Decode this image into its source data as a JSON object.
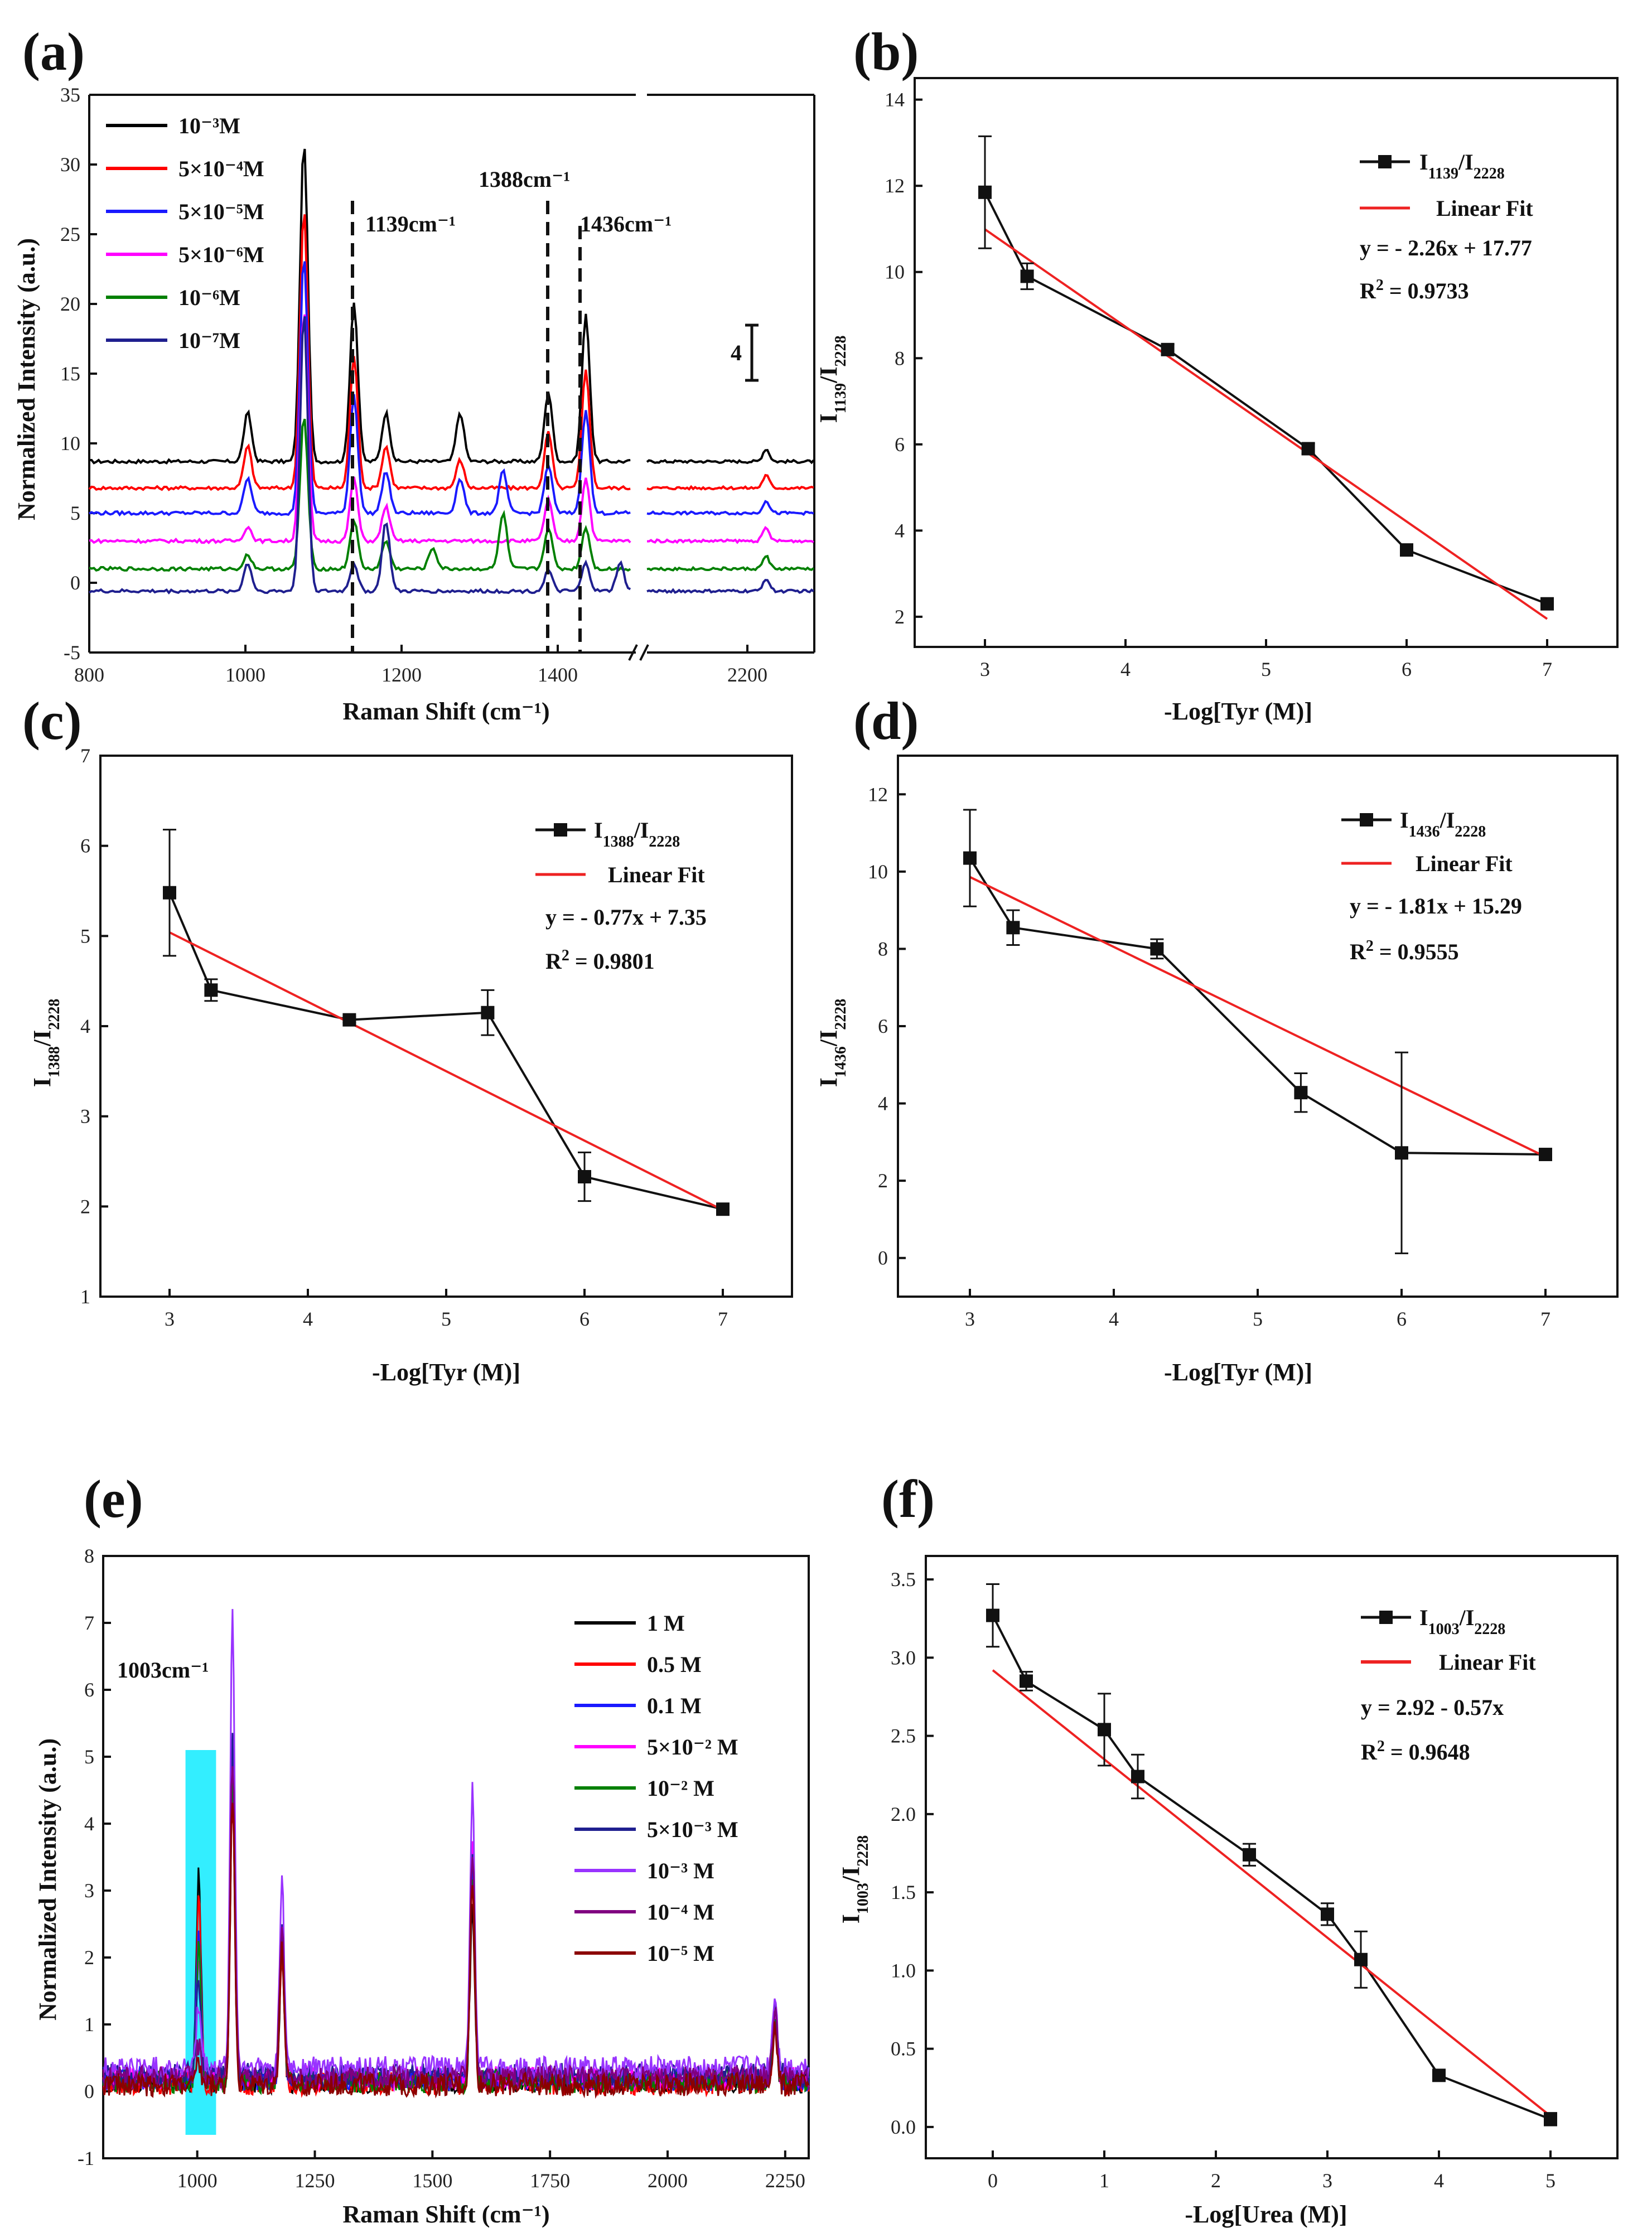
{
  "chart_data": [
    {
      "panel": "(a)",
      "type": "line",
      "xlabel": "Raman Shift (cm⁻¹)",
      "ylabel": "Normalized Intensity (a.u.)",
      "xlim_left": [
        800,
        1500
      ],
      "xlim_right": [
        2050,
        2300
      ],
      "xticks": [
        "800",
        "1000",
        "1200",
        "1400",
        "2200"
      ],
      "ylim": [
        -5,
        35
      ],
      "yticks": [
        "-5",
        "0",
        "5",
        "10",
        "15",
        "20",
        "25",
        "30",
        "35"
      ],
      "scale_bar": "4",
      "annotations": [
        "1139cm⁻¹",
        "1388cm⁻¹",
        "1436cm⁻¹"
      ],
      "series": [
        {
          "name": "10⁻³M",
          "color": "#000000",
          "baseline": 8.7,
          "peaks": [
            [
              1003,
              3.5
            ],
            [
              1075,
              23
            ],
            [
              1139,
              11.5
            ],
            [
              1180,
              3.5
            ],
            [
              1275,
              3.5
            ],
            [
              1388,
              5
            ],
            [
              1436,
              10.5
            ]
          ]
        },
        {
          "name": "5×10⁻⁴M",
          "color": "#ff0000",
          "baseline": 6.8,
          "peaks": [
            [
              1003,
              3.0
            ],
            [
              1075,
              20
            ],
            [
              1139,
              9.5
            ],
            [
              1180,
              3.0
            ],
            [
              1275,
              2.0
            ],
            [
              1388,
              4
            ],
            [
              1436,
              8.5
            ]
          ]
        },
        {
          "name": "5×10⁻⁵M",
          "color": "#1a1aff",
          "baseline": 5.0,
          "peaks": [
            [
              1003,
              2.5
            ],
            [
              1075,
              18.5
            ],
            [
              1139,
              8.5
            ],
            [
              1180,
              3.0
            ],
            [
              1275,
              2.5
            ],
            [
              1330,
              3.0
            ],
            [
              1388,
              3.5
            ],
            [
              1436,
              7.5
            ]
          ]
        },
        {
          "name": "5×10⁻⁶M",
          "color": "#ff00ff",
          "baseline": 3.0,
          "peaks": [
            [
              1003,
              1.0
            ],
            [
              1075,
              16.5
            ],
            [
              1139,
              4.5
            ],
            [
              1180,
              2.5
            ],
            [
              1388,
              3.0
            ],
            [
              1436,
              4.5
            ]
          ]
        },
        {
          "name": "10⁻⁶M",
          "color": "#008000",
          "baseline": 1.0,
          "peaks": [
            [
              1003,
              1.0
            ],
            [
              1075,
              11
            ],
            [
              1139,
              3.5
            ],
            [
              1180,
              2.0
            ],
            [
              1240,
              1.5
            ],
            [
              1330,
              4.0
            ],
            [
              1388,
              3.0
            ],
            [
              1436,
              3.0
            ]
          ]
        },
        {
          "name": "10⁻⁷M",
          "color": "#1f1f8f",
          "baseline": -0.6,
          "peaks": [
            [
              1003,
              2.0
            ],
            [
              1075,
              20
            ],
            [
              1139,
              2.0
            ],
            [
              1180,
              5.0
            ],
            [
              1388,
              1.5
            ],
            [
              1436,
              2.0
            ],
            [
              1480,
              2.0
            ]
          ]
        }
      ]
    },
    {
      "panel": "(b)",
      "type": "scatter",
      "xlabel": "-Log[Tyr (M)]",
      "ylabel_main": "I",
      "ylabel_sub1": "1139",
      "ylabel_sub2": "2228",
      "xlim": [
        2.5,
        7.5
      ],
      "xticks": [
        "3",
        "4",
        "5",
        "6",
        "7"
      ],
      "ylim": [
        1.3,
        14.5
      ],
      "yticks": [
        "2",
        "4",
        "6",
        "8",
        "10",
        "12",
        "14"
      ],
      "x": [
        3,
        3.3,
        4.3,
        5.3,
        6,
        7
      ],
      "y": [
        11.85,
        9.9,
        8.2,
        5.9,
        3.55,
        2.3
      ],
      "err": [
        1.3,
        0.3,
        0.12,
        0.12,
        0.1,
        0.12
      ],
      "fit": {
        "x": [
          3,
          7
        ],
        "y": [
          10.99,
          1.95
        ]
      },
      "legend": {
        "series_main": "I",
        "series_sub1": "1139",
        "series_sub2": "2228",
        "fit": "Linear Fit",
        "equation": "y = - 2.26x + 17.77",
        "r2_label": "R",
        "r2_value": " = 0.9733"
      }
    },
    {
      "panel": "(c)",
      "type": "scatter",
      "xlabel": "-Log[Tyr (M)]",
      "ylabel_main": "I",
      "ylabel_sub1": "1388",
      "ylabel_sub2": "2228",
      "xlim": [
        2.5,
        7.5
      ],
      "xticks": [
        "3",
        "4",
        "5",
        "6",
        "7"
      ],
      "ylim": [
        1,
        7
      ],
      "yticks": [
        "1",
        "2",
        "3",
        "4",
        "5",
        "6",
        "7"
      ],
      "x": [
        3,
        3.3,
        4.3,
        5.3,
        6,
        7
      ],
      "y": [
        5.48,
        4.4,
        4.07,
        4.15,
        2.33,
        1.97
      ],
      "err": [
        0.7,
        0.12,
        0.03,
        0.25,
        0.27,
        0.04
      ],
      "fit": {
        "x": [
          3,
          7
        ],
        "y": [
          5.04,
          1.96
        ]
      },
      "legend": {
        "series_main": "I",
        "series_sub1": "1388",
        "series_sub2": "2228",
        "fit": "Linear Fit",
        "equation": "y = - 0.77x + 7.35",
        "r2_label": "R",
        "r2_value": " = 0.9801"
      }
    },
    {
      "panel": "(d)",
      "type": "scatter",
      "xlabel": "-Log[Tyr (M)]",
      "ylabel_main": "I",
      "ylabel_sub1": "1436",
      "ylabel_sub2": "2228",
      "xlim": [
        2.5,
        7.5
      ],
      "xticks": [
        "3",
        "4",
        "5",
        "6",
        "7"
      ],
      "ylim": [
        -1,
        13
      ],
      "yticks": [
        "0",
        "2",
        "4",
        "6",
        "8",
        "10",
        "12"
      ],
      "x": [
        3,
        3.3,
        4.3,
        5.3,
        6,
        7
      ],
      "y": [
        10.35,
        8.55,
        8.0,
        4.28,
        2.72,
        2.68
      ],
      "err": [
        1.25,
        0.45,
        0.25,
        0.5,
        2.6,
        0.12
      ],
      "fit": {
        "x": [
          3,
          7
        ],
        "y": [
          9.86,
          2.62
        ]
      },
      "legend": {
        "series_main": "I",
        "series_sub1": "1436",
        "series_sub2": "2228",
        "fit": "Linear Fit",
        "equation": "y = - 1.81x + 15.29",
        "r2_label": "R",
        "r2_value": " = 0.9555"
      }
    },
    {
      "panel": "(e)",
      "type": "line",
      "xlabel": "Raman Shift (cm⁻¹)",
      "ylabel": "Normalized Intensity (a.u.)",
      "xlim": [
        800,
        2300
      ],
      "xticks": [
        "1000",
        "1250",
        "1500",
        "1750",
        "2000",
        "2250"
      ],
      "ylim": [
        -1,
        8
      ],
      "yticks": [
        "-1",
        "0",
        "1",
        "2",
        "3",
        "4",
        "5",
        "6",
        "7",
        "8"
      ],
      "highlight": {
        "x": [
          975,
          1040
        ],
        "y": [
          -0.65,
          5.1
        ],
        "color": "#33eeff"
      },
      "annotation": "1003cm⁻¹",
      "series": [
        {
          "name": "1 M",
          "color": "#000000",
          "baseline": 0.15,
          "peaks": [
            [
              1003,
              3.1
            ],
            [
              1075,
              4.2
            ],
            [
              1180,
              1.8
            ],
            [
              1585,
              2.6
            ],
            [
              2228,
              1.0
            ]
          ]
        },
        {
          "name": "0.5 M",
          "color": "#ff0000",
          "baseline": 0.12,
          "peaks": [
            [
              1003,
              2.8
            ],
            [
              1075,
              4.4
            ],
            [
              1180,
              2.0
            ],
            [
              1585,
              3.0
            ],
            [
              2228,
              1.0
            ]
          ]
        },
        {
          "name": "0.1 M",
          "color": "#1a1aff",
          "baseline": 0.18,
          "peaks": [
            [
              1003,
              2.3
            ],
            [
              1075,
              4.6
            ],
            [
              1180,
              2.1
            ],
            [
              1585,
              3.4
            ],
            [
              2228,
              1.0
            ]
          ]
        },
        {
          "name": "5×10⁻² M",
          "color": "#ff00ff",
          "baseline": 0.2,
          "peaks": [
            [
              1003,
              1.9
            ],
            [
              1075,
              4.8
            ],
            [
              1180,
              2.2
            ],
            [
              1585,
              3.6
            ],
            [
              2228,
              1.0
            ]
          ]
        },
        {
          "name": "10⁻² M",
          "color": "#008000",
          "baseline": 0.15,
          "peaks": [
            [
              1003,
              2.0
            ],
            [
              1075,
              4.5
            ],
            [
              1180,
              2.0
            ],
            [
              1585,
              3.0
            ],
            [
              2228,
              1.0
            ]
          ]
        },
        {
          "name": "5×10⁻³ M",
          "color": "#1f1f8f",
          "baseline": 0.25,
          "peaks": [
            [
              1003,
              1.4
            ],
            [
              1075,
              5.0
            ],
            [
              1180,
              2.3
            ],
            [
              1585,
              3.2
            ],
            [
              2228,
              1.0
            ]
          ]
        },
        {
          "name": "10⁻³ M",
          "color": "#9933ff",
          "baseline": 0.35,
          "peaks": [
            [
              1003,
              0.9
            ],
            [
              1075,
              6.7
            ],
            [
              1180,
              2.75
            ],
            [
              1585,
              4.1
            ],
            [
              2228,
              1.1
            ]
          ]
        },
        {
          "name": "10⁻⁴ M",
          "color": "#800080",
          "baseline": 0.2,
          "peaks": [
            [
              1003,
              0.5
            ],
            [
              1075,
              4.8
            ],
            [
              1180,
              2.3
            ],
            [
              1585,
              3.4
            ],
            [
              2228,
              1.0
            ]
          ]
        },
        {
          "name": "10⁻⁵ M",
          "color": "#8b0000",
          "baseline": 0.1,
          "peaks": [
            [
              1003,
              0.3
            ],
            [
              1075,
              4.3
            ],
            [
              1180,
              2.0
            ],
            [
              1585,
              3.0
            ],
            [
              2228,
              0.9
            ]
          ]
        }
      ]
    },
    {
      "panel": "(f)",
      "type": "scatter",
      "xlabel": "-Log[Urea (M)]",
      "ylabel_main": "I",
      "ylabel_sub1": "1003",
      "ylabel_sub2": "2228",
      "xlim": [
        -0.6,
        5.6
      ],
      "xticks": [
        "0",
        "1",
        "2",
        "3",
        "4",
        "5"
      ],
      "ylim": [
        -0.2,
        3.65
      ],
      "yticks": [
        "0.0",
        "0.5",
        "1.0",
        "1.5",
        "2.0",
        "2.5",
        "3.0",
        "3.5"
      ],
      "x": [
        0,
        0.3,
        1,
        1.3,
        2.3,
        3,
        3.3,
        4,
        5
      ],
      "y": [
        3.27,
        2.85,
        2.54,
        2.24,
        1.74,
        1.36,
        1.07,
        0.33,
        0.05
      ],
      "err": [
        0.2,
        0.06,
        0.23,
        0.14,
        0.07,
        0.07,
        0.18,
        0.03,
        0.04
      ],
      "fit": {
        "x": [
          0,
          5
        ],
        "y": [
          2.92,
          0.07
        ]
      },
      "legend": {
        "series_main": "I",
        "series_sub1": "1003",
        "series_sub2": "2228",
        "fit": "Linear Fit",
        "equation": "y = 2.92 - 0.57x",
        "r2_label": "R",
        "r2_value": " = 0.9648"
      }
    }
  ]
}
